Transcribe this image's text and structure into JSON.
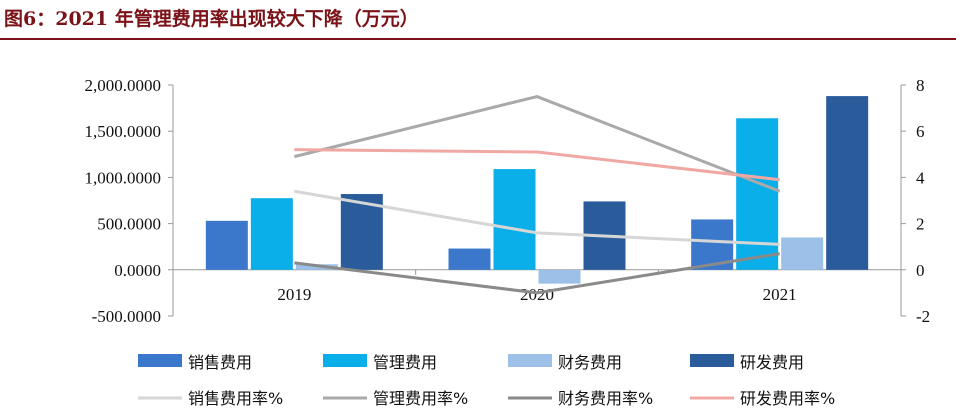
{
  "figure_title": "图6：2021 年管理费用率出现较大下降（万元）",
  "chart_data": {
    "type": "bar",
    "categories": [
      "2019",
      "2020",
      "2021"
    ],
    "y_left": {
      "min": -500,
      "max": 2000,
      "ticks": [
        "-500.0000",
        "0.0000",
        "500.0000",
        "1,000.0000",
        "1,500.0000",
        "2,000.0000"
      ]
    },
    "y_right": {
      "min": -2,
      "max": 8,
      "ticks": [
        "-2",
        "0",
        "2",
        "4",
        "6",
        "8"
      ]
    },
    "bar_series": [
      {
        "name": "销售费用",
        "color": "#3b78cc",
        "values": [
          530,
          230,
          545
        ]
      },
      {
        "name": "管理费用",
        "color": "#0aaee8",
        "values": [
          775,
          1090,
          1640
        ]
      },
      {
        "name": "财务费用",
        "color": "#9cc0e8",
        "values": [
          60,
          -150,
          350
        ]
      },
      {
        "name": "研发费用",
        "color": "#2a5c9c",
        "values": [
          820,
          740,
          1880
        ]
      }
    ],
    "line_series": [
      {
        "name": "销售费用率%",
        "color": "#d6d6d6",
        "values": [
          3.4,
          1.6,
          1.1
        ]
      },
      {
        "name": "管理费用率%",
        "color": "#a9a9a9",
        "values": [
          4.9,
          7.5,
          3.4
        ]
      },
      {
        "name": "财务费用率%",
        "color": "#8a8a8a",
        "values": [
          0.3,
          -1.0,
          0.7
        ]
      },
      {
        "name": "研发费用率%",
        "color": "#f0a8a4",
        "values": [
          5.2,
          5.1,
          3.9
        ]
      }
    ],
    "legend_position": "bottom",
    "grid": false
  }
}
